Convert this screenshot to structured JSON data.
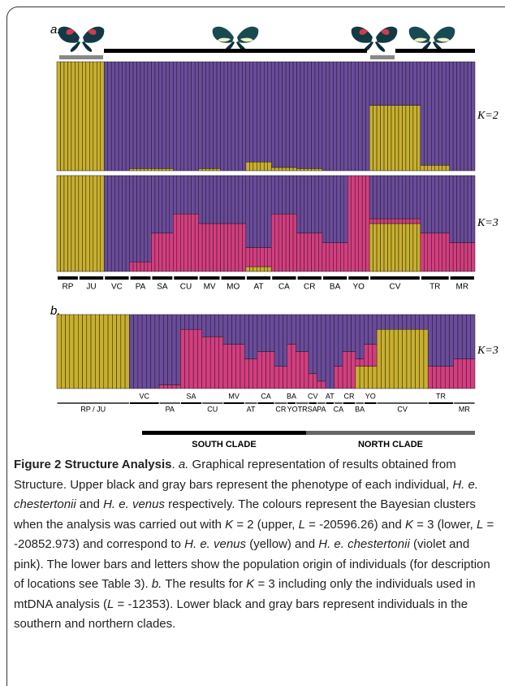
{
  "figure": {
    "cluster_colors": [
      "#c9b02c",
      "#6a4b9c",
      "#d53d80"
    ],
    "panel_a": {
      "label": "a.",
      "k_labels": [
        "K=2",
        "K=3"
      ],
      "populations": [
        {
          "name": "RP",
          "n": 6,
          "k2": [
            1,
            0
          ],
          "k3": [
            1,
            0,
            0
          ]
        },
        {
          "name": "JU",
          "n": 7,
          "k2": [
            1,
            0
          ],
          "k3": [
            1,
            0,
            0
          ]
        },
        {
          "name": "VC",
          "n": 7,
          "k2": [
            0,
            1
          ],
          "k3": [
            0,
            1,
            0
          ]
        },
        {
          "name": "PA",
          "n": 6,
          "k2": [
            0.02,
            0.98
          ],
          "k3": [
            0,
            0.9,
            0.1
          ]
        },
        {
          "name": "SA",
          "n": 6,
          "k2": [
            0.02,
            0.98
          ],
          "k3": [
            0,
            0.6,
            0.4
          ]
        },
        {
          "name": "CU",
          "n": 7,
          "k2": [
            0,
            1
          ],
          "k3": [
            0,
            0.4,
            0.6
          ]
        },
        {
          "name": "MV",
          "n": 6,
          "k2": [
            0.02,
            0.98
          ],
          "k3": [
            0,
            0.5,
            0.5
          ]
        },
        {
          "name": "MO",
          "n": 7,
          "k2": [
            0,
            1
          ],
          "k3": [
            0,
            0.5,
            0.5
          ]
        },
        {
          "name": "AT",
          "n": 7,
          "k2": [
            0.08,
            0.92
          ],
          "k3": [
            0.05,
            0.75,
            0.2
          ]
        },
        {
          "name": "CA",
          "n": 7,
          "k2": [
            0.03,
            0.97
          ],
          "k3": [
            0,
            0.4,
            0.6
          ]
        },
        {
          "name": "CR",
          "n": 7,
          "k2": [
            0.02,
            0.98
          ],
          "k3": [
            0,
            0.6,
            0.4
          ]
        },
        {
          "name": "BA",
          "n": 7,
          "k2": [
            0,
            1
          ],
          "k3": [
            0,
            0.7,
            0.3
          ]
        },
        {
          "name": "YO",
          "n": 6,
          "k2": [
            0,
            1
          ],
          "k3": [
            0,
            0,
            1
          ]
        },
        {
          "name": "CV",
          "n": 14,
          "k2": [
            0.6,
            0.4
          ],
          "k3": [
            0.5,
            0.45,
            0.05
          ]
        },
        {
          "name": "TR",
          "n": 8,
          "k2": [
            0.05,
            0.95
          ],
          "k3": [
            0,
            0.6,
            0.4
          ]
        },
        {
          "name": "MR",
          "n": 7,
          "k2": [
            0,
            1
          ],
          "k3": [
            0,
            0.7,
            0.3
          ]
        }
      ]
    },
    "panel_b": {
      "label": "b.",
      "k_label": "K=3",
      "populations": [
        {
          "name": "RP / JU",
          "n": 17,
          "k3": [
            1,
            0,
            0
          ]
        },
        {
          "name": "VC",
          "n": 7,
          "k3": [
            0,
            1,
            0
          ]
        },
        {
          "name": "PA",
          "n": 5,
          "k3": [
            0,
            0.95,
            0.05
          ]
        },
        {
          "name": "SA",
          "n": 5,
          "k3": [
            0,
            0.2,
            0.8
          ]
        },
        {
          "name": "CU",
          "n": 5,
          "k3": [
            0,
            0.3,
            0.7
          ]
        },
        {
          "name": "MV",
          "n": 5,
          "k3": [
            0,
            0.4,
            0.6
          ]
        },
        {
          "name": "AT",
          "n": 3,
          "k3": [
            0,
            0.6,
            0.4
          ]
        },
        {
          "name": "CA",
          "n": 4,
          "k3": [
            0,
            0.5,
            0.5
          ]
        },
        {
          "name": "CR",
          "n": 3,
          "k3": [
            0,
            0.7,
            0.3
          ]
        },
        {
          "name": "BA",
          "n": 2,
          "k3": [
            0,
            0.4,
            0.6
          ]
        },
        {
          "name": "YOTRSA",
          "n": 3,
          "k3": [
            0,
            0.5,
            0.5
          ]
        },
        {
          "name": "CV",
          "n": 2,
          "k3": [
            0,
            0.8,
            0.2
          ]
        },
        {
          "name": "PA",
          "n": 2,
          "k3": [
            0,
            0.9,
            0.1
          ]
        },
        {
          "name": "AT",
          "n": 2,
          "k3": [
            0,
            1,
            0
          ]
        },
        {
          "name": "CA",
          "n": 2,
          "k3": [
            0,
            0.7,
            0.3
          ]
        },
        {
          "name": "CR",
          "n": 3,
          "k3": [
            0,
            0.5,
            0.5
          ]
        },
        {
          "name": "BA",
          "n": 2,
          "k3": [
            0.3,
            0.6,
            0.1
          ]
        },
        {
          "name": "YO",
          "n": 3,
          "k3": [
            0.3,
            0.4,
            0.3
          ]
        },
        {
          "name": "CV",
          "n": 12,
          "k3": [
            0.8,
            0.2,
            0
          ]
        },
        {
          "name": "TR",
          "n": 6,
          "k3": [
            0,
            0.7,
            0.3
          ]
        },
        {
          "name": "MR",
          "n": 5,
          "k3": [
            0,
            0.6,
            0.4
          ]
        }
      ],
      "clades": [
        {
          "name": "SOUTH CLADE",
          "color": "#000000"
        },
        {
          "name": "NORTH CLADE",
          "color": "#666666"
        }
      ]
    },
    "caption": {
      "runs": [
        {
          "text": "Figure 2 Structure Analysis",
          "style": "bold"
        },
        {
          "text": ". "
        },
        {
          "text": "a.",
          "style": "italic"
        },
        {
          "text": " Graphical representation of results obtained from Structure. Upper black and gray bars represent the phenotype of each individual, "
        },
        {
          "text": "H. e. chestertonii",
          "style": "italic"
        },
        {
          "text": " and "
        },
        {
          "text": "H. e. venus",
          "style": "italic"
        },
        {
          "text": " respectively. The colours represent the Bayesian clusters when the analysis was carried out with "
        },
        {
          "text": "K",
          "style": "italic"
        },
        {
          "text": " = 2 (upper, "
        },
        {
          "text": "L",
          "style": "italic"
        },
        {
          "text": " = -20596.26) and "
        },
        {
          "text": "K",
          "style": "italic"
        },
        {
          "text": " = 3 (lower, "
        },
        {
          "text": "L",
          "style": "italic"
        },
        {
          "text": " = -20852.973) and correspond to "
        },
        {
          "text": "H. e. venus",
          "style": "italic"
        },
        {
          "text": " (yellow) and "
        },
        {
          "text": "H. e. chestertonii",
          "style": "italic"
        },
        {
          "text": " (violet and pink). The lower bars and letters show the population origin of individuals (for description of locations see Table 3). "
        },
        {
          "text": "b.",
          "style": "italic"
        },
        {
          "text": " The results for "
        },
        {
          "text": "K",
          "style": "italic"
        },
        {
          "text": " = 3 including only the individuals used in mtDNA analysis ("
        },
        {
          "text": "L",
          "style": "italic"
        },
        {
          "text": " = -12353). Lower black and gray bars represent individuals in the southern and northern clades."
        }
      ]
    }
  }
}
